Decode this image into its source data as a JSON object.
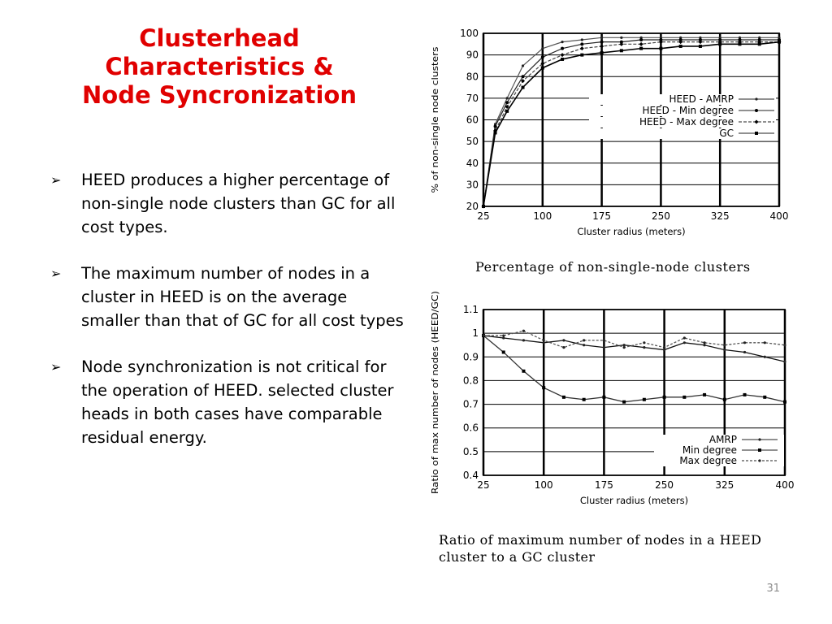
{
  "slide": {
    "title_lines": [
      "Clusterhead",
      "Characteristics &",
      "Node Syncronization"
    ],
    "title_color": "#e00000",
    "bullets": [
      "HEED produces a higher percentage of non-single node clusters than GC for all cost types.",
      "The maximum number of nodes in a cluster in HEED is on the average smaller than that of GC for all cost types",
      "Node synchronization is not critical for the operation of HEED. selected cluster heads in both cases have comparable residual energy."
    ],
    "bullet_marker": "➢",
    "slide_number": "31"
  },
  "chart_data": [
    {
      "type": "line",
      "caption": "Percentage of non-single-node clusters",
      "xlabel": "Cluster radius (meters)",
      "ylabel": "% of non-single node clusters",
      "xlim": [
        25,
        400
      ],
      "ylim": [
        20,
        100
      ],
      "xticks": [
        25,
        100,
        175,
        250,
        325,
        400
      ],
      "yticks": [
        20,
        30,
        40,
        50,
        60,
        70,
        80,
        90,
        100
      ],
      "grid": true,
      "legend_position": "center-right",
      "x": [
        25,
        40,
        55,
        75,
        100,
        125,
        150,
        175,
        200,
        225,
        250,
        275,
        300,
        325,
        350,
        375,
        400
      ],
      "series": [
        {
          "name": "HEED - AMRP",
          "values": [
            20,
            58,
            70,
            85,
            93,
            96,
            97,
            98,
            98,
            98,
            98,
            98,
            98,
            98,
            98,
            98,
            98
          ]
        },
        {
          "name": "HEED - Min degree",
          "values": [
            20,
            57,
            68,
            80,
            89,
            93,
            95,
            96,
            96,
            97,
            97,
            97,
            97,
            97,
            97,
            97,
            97
          ]
        },
        {
          "name": "HEED - Max degree",
          "values": [
            20,
            55,
            66,
            78,
            86,
            90,
            93,
            94,
            95,
            95,
            96,
            96,
            96,
            96,
            96,
            96,
            96
          ]
        },
        {
          "name": "GC",
          "values": [
            20,
            54,
            64,
            75,
            84,
            88,
            90,
            91,
            92,
            93,
            93,
            94,
            94,
            95,
            95,
            95,
            96
          ]
        }
      ]
    },
    {
      "type": "line",
      "caption": "Ratio of maximum number of nodes in a HEED cluster to a GC cluster",
      "xlabel": "Cluster radius (meters)",
      "ylabel": "Ratio of max number of nodes (HEED/GC)",
      "xlim": [
        25,
        400
      ],
      "ylim": [
        0.4,
        1.1
      ],
      "xticks": [
        25,
        100,
        175,
        250,
        325,
        400
      ],
      "yticks": [
        0.4,
        0.5,
        0.6,
        0.7,
        0.8,
        0.9,
        1,
        1.1
      ],
      "yticklabels": [
        "0.4",
        "0.5",
        "0.6",
        "0.7",
        "0.8",
        "0.9",
        "1",
        "1.1"
      ],
      "grid": true,
      "legend_position": "bottom-right",
      "x": [
        25,
        50,
        75,
        100,
        125,
        150,
        175,
        200,
        225,
        250,
        275,
        300,
        325,
        350,
        375,
        400
      ],
      "series": [
        {
          "name": "AMRP",
          "values": [
            0.99,
            0.98,
            0.97,
            0.96,
            0.97,
            0.95,
            0.94,
            0.95,
            0.94,
            0.93,
            0.96,
            0.95,
            0.93,
            0.92,
            0.9,
            0.88
          ]
        },
        {
          "name": "Min degree",
          "values": [
            0.99,
            0.92,
            0.84,
            0.77,
            0.73,
            0.72,
            0.73,
            0.71,
            0.72,
            0.73,
            0.73,
            0.74,
            0.72,
            0.74,
            0.73,
            0.71
          ]
        },
        {
          "name": "Max degree",
          "values": [
            0.99,
            0.99,
            1.01,
            0.97,
            0.94,
            0.97,
            0.97,
            0.94,
            0.96,
            0.94,
            0.98,
            0.96,
            0.95,
            0.96,
            0.96,
            0.95
          ]
        }
      ]
    }
  ]
}
